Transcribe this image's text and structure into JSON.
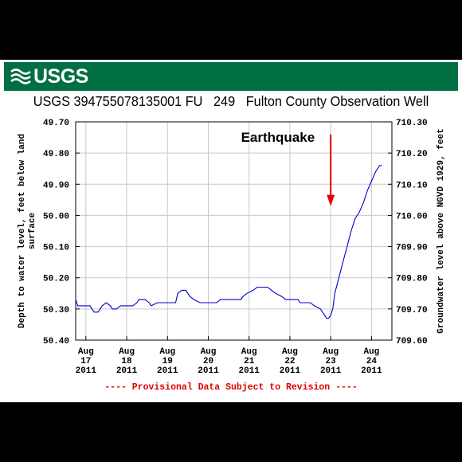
{
  "header": {
    "logo_text": "USGS"
  },
  "title": "USGS 394755078135001 FU   249   Fulton County Observation Well",
  "footer_note": "---- Provisional Data Subject to Revision ----",
  "colors": {
    "banner": "#006f41",
    "series": "#0000cc",
    "annotation": "#e00000",
    "grid": "#c8c8c8"
  },
  "chart_data": {
    "type": "line",
    "title": "USGS 394755078135001 FU   249   Fulton County Observation Well",
    "ylabel_left": "Depth to water level, feet below land surface",
    "ylabel_left_lines": [
      "Depth to water level, feet below land",
      "surface"
    ],
    "ylabel_right": "Groundwater level above NGVD 1929, feet",
    "y_left_ticks": [
      "49.70",
      "49.80",
      "49.90",
      "50.00",
      "50.10",
      "50.20",
      "50.30",
      "50.40"
    ],
    "y_right_ticks": [
      "710.30",
      "710.20",
      "710.10",
      "710.00",
      "709.90",
      "709.80",
      "709.70",
      "709.60"
    ],
    "y_left_range": [
      49.7,
      50.4
    ],
    "y_left_inverted": true,
    "y_right_range": [
      709.6,
      710.3
    ],
    "x_range": [
      16.75,
      24.5
    ],
    "x_ticks": [
      {
        "x": 17,
        "line1": "Aug",
        "line2": "17",
        "line3": "2011"
      },
      {
        "x": 18,
        "line1": "Aug",
        "line2": "18",
        "line3": "2011"
      },
      {
        "x": 19,
        "line1": "Aug",
        "line2": "19",
        "line3": "2011"
      },
      {
        "x": 20,
        "line1": "Aug",
        "line2": "20",
        "line3": "2011"
      },
      {
        "x": 21,
        "line1": "Aug",
        "line2": "21",
        "line3": "2011"
      },
      {
        "x": 22,
        "line1": "Aug",
        "line2": "22",
        "line3": "2011"
      },
      {
        "x": 23,
        "line1": "Aug",
        "line2": "23",
        "line3": "2011"
      },
      {
        "x": 24,
        "line1": "Aug",
        "line2": "24",
        "line3": "2011"
      }
    ],
    "grid": true,
    "annotation": {
      "text": "Earthquake",
      "arrow_x": 23.0,
      "arrow_from_depth": 49.74,
      "arrow_to_depth": 49.97
    },
    "series": [
      {
        "color": "#0000cc",
        "points": [
          [
            16.75,
            50.27
          ],
          [
            16.8,
            50.29
          ],
          [
            17.0,
            50.29
          ],
          [
            17.1,
            50.29
          ],
          [
            17.15,
            50.3
          ],
          [
            17.2,
            50.31
          ],
          [
            17.3,
            50.31
          ],
          [
            17.4,
            50.29
          ],
          [
            17.5,
            50.28
          ],
          [
            17.6,
            50.29
          ],
          [
            17.65,
            50.3
          ],
          [
            17.75,
            50.3
          ],
          [
            17.85,
            50.29
          ],
          [
            18.0,
            50.29
          ],
          [
            18.15,
            50.29
          ],
          [
            18.25,
            50.28
          ],
          [
            18.3,
            50.27
          ],
          [
            18.45,
            50.27
          ],
          [
            18.55,
            50.28
          ],
          [
            18.6,
            50.29
          ],
          [
            18.75,
            50.28
          ],
          [
            19.0,
            50.28
          ],
          [
            19.2,
            50.28
          ],
          [
            19.25,
            50.25
          ],
          [
            19.35,
            50.24
          ],
          [
            19.45,
            50.24
          ],
          [
            19.55,
            50.26
          ],
          [
            19.65,
            50.27
          ],
          [
            19.8,
            50.28
          ],
          [
            20.0,
            50.28
          ],
          [
            20.2,
            50.28
          ],
          [
            20.3,
            50.27
          ],
          [
            20.5,
            50.27
          ],
          [
            20.8,
            50.27
          ],
          [
            20.85,
            50.26
          ],
          [
            20.95,
            50.25
          ],
          [
            21.1,
            50.24
          ],
          [
            21.2,
            50.23
          ],
          [
            21.45,
            50.23
          ],
          [
            21.55,
            50.24
          ],
          [
            21.65,
            50.25
          ],
          [
            21.8,
            50.26
          ],
          [
            21.9,
            50.27
          ],
          [
            22.2,
            50.27
          ],
          [
            22.25,
            50.28
          ],
          [
            22.5,
            50.28
          ],
          [
            22.6,
            50.29
          ],
          [
            22.75,
            50.3
          ],
          [
            22.8,
            50.31
          ],
          [
            22.85,
            50.32
          ],
          [
            22.9,
            50.33
          ],
          [
            22.95,
            50.33
          ],
          [
            23.0,
            50.32
          ],
          [
            23.05,
            50.3
          ],
          [
            23.1,
            50.25
          ],
          [
            23.2,
            50.2
          ],
          [
            23.3,
            50.15
          ],
          [
            23.4,
            50.1
          ],
          [
            23.5,
            50.05
          ],
          [
            23.6,
            50.01
          ],
          [
            23.7,
            49.99
          ],
          [
            23.8,
            49.96
          ],
          [
            23.9,
            49.92
          ],
          [
            24.0,
            49.89
          ],
          [
            24.1,
            49.86
          ],
          [
            24.2,
            49.84
          ],
          [
            24.25,
            49.84
          ]
        ]
      }
    ]
  }
}
